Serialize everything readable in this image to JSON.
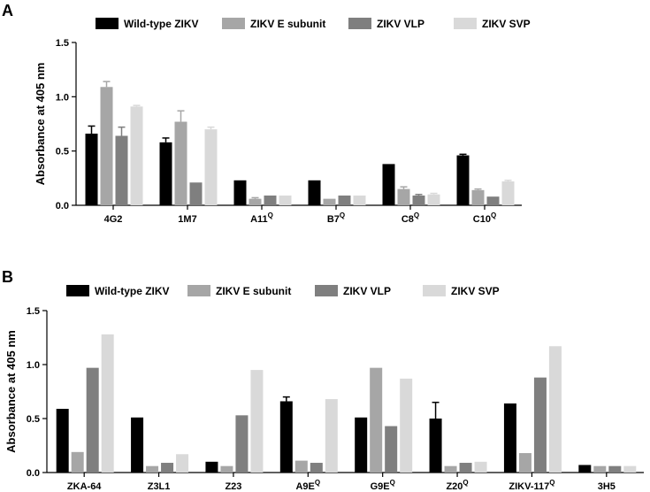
{
  "chart_data": [
    {
      "panel": "A",
      "type": "bar",
      "ylabel": "Absorbance at 405 nm",
      "ylim": [
        0,
        1.5
      ],
      "yticks": [
        0.0,
        0.5,
        1.0,
        1.5
      ],
      "ytick_labels": [
        "0.0",
        "0.5",
        "1.0",
        "1.5"
      ],
      "categories": [
        {
          "label": "4G2",
          "sup": ""
        },
        {
          "label": "1M7",
          "sup": ""
        },
        {
          "label": "A11",
          "sup": "Q"
        },
        {
          "label": "B7",
          "sup": "Q"
        },
        {
          "label": "C8",
          "sup": "Q"
        },
        {
          "label": "C10",
          "sup": "Q"
        }
      ],
      "series": [
        {
          "name": "Wild-type ZIKV",
          "color": "#000000",
          "values": [
            0.66,
            0.58,
            0.23,
            0.23,
            0.38,
            0.46
          ],
          "errors": [
            0.07,
            0.04,
            0.0,
            0.0,
            0.0,
            0.01
          ]
        },
        {
          "name": "ZIKV E subunit",
          "color": "#a6a6a6",
          "values": [
            1.09,
            0.77,
            0.06,
            0.06,
            0.15,
            0.14
          ],
          "errors": [
            0.05,
            0.1,
            0.01,
            0.0,
            0.02,
            0.01
          ]
        },
        {
          "name": "ZIKV VLP",
          "color": "#7f7f7f",
          "values": [
            0.64,
            0.21,
            0.09,
            0.09,
            0.09,
            0.08
          ],
          "errors": [
            0.08,
            0.0,
            0.0,
            0.0,
            0.01,
            0.0
          ]
        },
        {
          "name": "ZIKV SVP",
          "color": "#d9d9d9",
          "values": [
            0.91,
            0.7,
            0.09,
            0.09,
            0.1,
            0.22
          ],
          "errors": [
            0.01,
            0.02,
            0.0,
            0.0,
            0.01,
            0.01
          ]
        }
      ]
    },
    {
      "panel": "B",
      "type": "bar",
      "ylabel": "Absorbance at 405 nm",
      "ylim": [
        0,
        1.5
      ],
      "yticks": [
        0.0,
        0.5,
        1.0,
        1.5
      ],
      "ytick_labels": [
        "0.0",
        "0.5",
        "1.0",
        "1.5"
      ],
      "categories": [
        {
          "label": "ZKA-64",
          "sup": ""
        },
        {
          "label": "Z3L1",
          "sup": ""
        },
        {
          "label": "Z23",
          "sup": ""
        },
        {
          "label": "A9E",
          "sup": "Q"
        },
        {
          "label": "G9E",
          "sup": "Q"
        },
        {
          "label": "Z20",
          "sup": "Q"
        },
        {
          "label": "ZIKV-117",
          "sup": "Q"
        },
        {
          "label": "3H5",
          "sup": ""
        }
      ],
      "series": [
        {
          "name": "Wild-type ZIKV",
          "color": "#000000",
          "values": [
            0.59,
            0.51,
            0.1,
            0.66,
            0.51,
            0.5,
            0.64,
            0.07
          ],
          "errors": [
            0.0,
            0.0,
            0.0,
            0.04,
            0.0,
            0.15,
            0.0,
            0.0
          ]
        },
        {
          "name": "ZIKV E subunit",
          "color": "#a6a6a6",
          "values": [
            0.19,
            0.06,
            0.06,
            0.11,
            0.97,
            0.06,
            0.18,
            0.06
          ]
        },
        {
          "name": "ZIKV VLP",
          "color": "#7f7f7f",
          "values": [
            0.97,
            0.09,
            0.53,
            0.09,
            0.43,
            0.09,
            0.88,
            0.06
          ]
        },
        {
          "name": "ZIKV SVP",
          "color": "#d9d9d9",
          "values": [
            1.28,
            0.17,
            0.95,
            0.68,
            0.87,
            0.1,
            1.17,
            0.06
          ]
        }
      ]
    }
  ]
}
